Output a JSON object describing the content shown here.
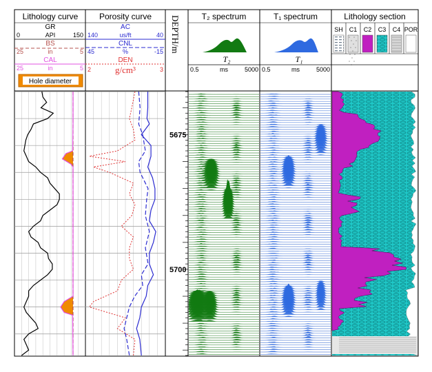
{
  "chart_data": {
    "type": "well-log",
    "tracks": {
      "lithology": {
        "title": "Lithology curve",
        "curves": [
          {
            "name": "GR",
            "unit": "API",
            "min": "0",
            "max": "150",
            "color": "#000000",
            "style": "solid"
          },
          {
            "name": "BS",
            "unit": "in",
            "min": "25",
            "max": "5",
            "color": "#b5504c",
            "style": "dashed"
          },
          {
            "name": "CAL",
            "unit": "in",
            "min": "25",
            "max": "5",
            "color": "#e050e0",
            "style": "solid"
          }
        ],
        "fill_label": "Hole diameter",
        "fill_color": "#f08a00"
      },
      "porosity": {
        "title": "Porosity curve",
        "curves": [
          {
            "name": "AC",
            "unit": "us/ft",
            "min": "140",
            "max": "40",
            "color": "#2a2ad0",
            "style": "solid"
          },
          {
            "name": "CNL",
            "unit": "%",
            "min": "45",
            "max": "-15",
            "color": "#2a2ad0",
            "style": "dashed"
          },
          {
            "name": "DEN",
            "unit": "g/cm³",
            "min": "2",
            "max": "3",
            "color": "#e03030",
            "style": "dotted"
          }
        ]
      },
      "depth": {
        "label": "DEPTH/m",
        "ticks": [
          "5675",
          "5700"
        ]
      },
      "t2": {
        "title": "T₂ spectrum",
        "symbol": "T₂",
        "min": "0.5",
        "unit": "ms",
        "max": "5000",
        "color": "#127a12"
      },
      "t1": {
        "title": "T₁ spectrum",
        "symbol": "T₁",
        "min": "0.5",
        "unit": "ms",
        "max": "5000",
        "color": "#2f6ae0"
      },
      "lith_section": {
        "title": "Lithology section",
        "legend": [
          {
            "code": "SH",
            "color": "#9aa8b8"
          },
          {
            "code": "C1",
            "color": "#e0e0e0"
          },
          {
            "code": "C2",
            "color": "#c020c0"
          },
          {
            "code": "C3",
            "color": "#1fc7c7"
          },
          {
            "code": "C4",
            "color": "#d8d8d8"
          },
          {
            "code": "POR",
            "color": "#ffffff"
          }
        ]
      }
    },
    "depth_range_m": [
      5667,
      5716
    ],
    "gr_api": [
      [
        5667,
        58
      ],
      [
        5668,
        60
      ],
      [
        5669,
        68
      ],
      [
        5670,
        56
      ],
      [
        5671,
        82
      ],
      [
        5672,
        70
      ],
      [
        5673,
        40
      ],
      [
        5674,
        35
      ],
      [
        5675,
        28
      ],
      [
        5676,
        24
      ],
      [
        5677,
        22
      ],
      [
        5678,
        20
      ],
      [
        5679,
        25
      ],
      [
        5680,
        30
      ],
      [
        5681,
        45
      ],
      [
        5682,
        55
      ],
      [
        5683,
        70
      ],
      [
        5684,
        75
      ],
      [
        5685,
        85
      ],
      [
        5686,
        95
      ],
      [
        5687,
        95
      ],
      [
        5688,
        90
      ],
      [
        5689,
        75
      ],
      [
        5690,
        60
      ],
      [
        5691,
        55
      ],
      [
        5692,
        40
      ],
      [
        5693,
        30
      ],
      [
        5694,
        35
      ],
      [
        5695,
        50
      ],
      [
        5696,
        55
      ],
      [
        5697,
        70
      ],
      [
        5698,
        72
      ],
      [
        5699,
        80
      ],
      [
        5700,
        80
      ],
      [
        5701,
        70
      ],
      [
        5702,
        55
      ],
      [
        5703,
        40
      ],
      [
        5704,
        30
      ],
      [
        5705,
        30
      ],
      [
        5706,
        25
      ],
      [
        5707,
        20
      ],
      [
        5708,
        25
      ],
      [
        5709,
        35
      ],
      [
        5710,
        45
      ],
      [
        5711,
        50
      ],
      [
        5712,
        30
      ],
      [
        5713,
        20
      ],
      [
        5714,
        25
      ],
      [
        5715,
        30
      ],
      [
        5716,
        15
      ]
    ],
    "cal_in": [
      [
        5667,
        8.5
      ],
      [
        5673,
        8.5
      ],
      [
        5678,
        8.6
      ],
      [
        5678.5,
        10.5
      ],
      [
        5679.5,
        11.5
      ],
      [
        5680.5,
        9.0
      ],
      [
        5681,
        8.5
      ],
      [
        5705,
        8.5
      ],
      [
        5706,
        11
      ],
      [
        5707,
        12
      ],
      [
        5708,
        11
      ],
      [
        5708.5,
        8.6
      ],
      [
        5716,
        8.5
      ]
    ],
    "ac_us_ft": [
      [
        5667,
        62
      ],
      [
        5670,
        62
      ],
      [
        5672,
        63
      ],
      [
        5673,
        60
      ],
      [
        5675,
        70
      ],
      [
        5677,
        58
      ],
      [
        5679,
        58
      ],
      [
        5681,
        62
      ],
      [
        5683,
        56
      ],
      [
        5685,
        53
      ],
      [
        5687,
        53
      ],
      [
        5689,
        58
      ],
      [
        5691,
        60
      ],
      [
        5693,
        52
      ],
      [
        5695,
        55
      ],
      [
        5697,
        60
      ],
      [
        5699,
        60
      ],
      [
        5701,
        55
      ],
      [
        5703,
        62
      ],
      [
        5705,
        64
      ],
      [
        5707,
        70
      ],
      [
        5709,
        72
      ],
      [
        5711,
        76
      ],
      [
        5713,
        72
      ],
      [
        5716,
        70
      ]
    ],
    "cnl_pct": [
      [
        5667,
        5
      ],
      [
        5670,
        4
      ],
      [
        5673,
        5
      ],
      [
        5675,
        2
      ],
      [
        5678,
        0
      ],
      [
        5680,
        5
      ],
      [
        5682,
        4
      ],
      [
        5685,
        -2
      ],
      [
        5687,
        -1
      ],
      [
        5690,
        0
      ],
      [
        5693,
        -3
      ],
      [
        5696,
        0
      ],
      [
        5699,
        -2
      ],
      [
        5701,
        3
      ],
      [
        5703,
        2
      ],
      [
        5705,
        8
      ],
      [
        5707,
        12
      ],
      [
        5709,
        14
      ],
      [
        5711,
        16
      ],
      [
        5713,
        14
      ],
      [
        5716,
        12
      ]
    ],
    "den_g_cm3": [
      [
        5667,
        2.62
      ],
      [
        5670,
        2.58
      ],
      [
        5672,
        2.55
      ],
      [
        5674,
        2.6
      ],
      [
        5676,
        2.62
      ],
      [
        5678,
        2.4
      ],
      [
        5679,
        2.05
      ],
      [
        5680,
        2.5
      ],
      [
        5681,
        2.1
      ],
      [
        5682,
        2.3
      ],
      [
        5684,
        2.6
      ],
      [
        5686,
        2.55
      ],
      [
        5688,
        2.62
      ],
      [
        5690,
        2.58
      ],
      [
        5692,
        2.45
      ],
      [
        5694,
        2.6
      ],
      [
        5696,
        2.55
      ],
      [
        5698,
        2.55
      ],
      [
        5700,
        2.6
      ],
      [
        5702,
        2.45
      ],
      [
        5704,
        2.4
      ],
      [
        5706,
        2.1
      ],
      [
        5707,
        2.05
      ],
      [
        5709,
        2.5
      ],
      [
        5711,
        2.4
      ],
      [
        5713,
        2.62
      ],
      [
        5716,
        2.6
      ]
    ],
    "t2_events": [
      [
        5682.5,
        0.32,
        0.06,
        3.0
      ],
      [
        5707,
        0.12,
        0.08,
        3.2
      ],
      [
        5707,
        0.3,
        0.06,
        2.6
      ],
      [
        5688,
        0.56,
        0.04,
        5.0
      ]
    ],
    "t1_events": [
      [
        5682,
        0.4,
        0.05,
        3.2
      ],
      [
        5706,
        0.4,
        0.05,
        3.4
      ],
      [
        5676,
        0.86,
        0.05,
        2.2
      ],
      [
        5705,
        0.86,
        0.04,
        2.0
      ]
    ]
  }
}
